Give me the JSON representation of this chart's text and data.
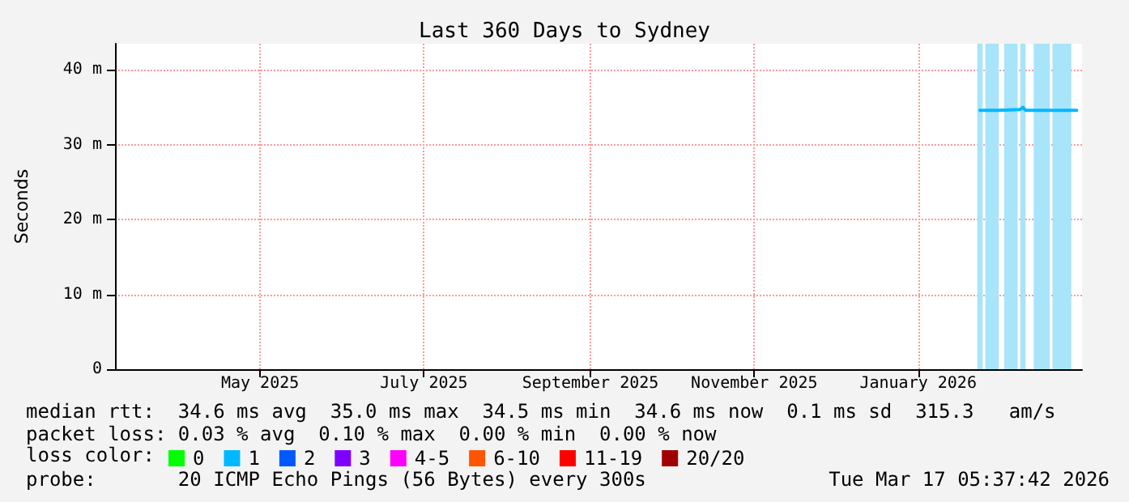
{
  "chart_data": {
    "type": "line",
    "title": "Last 360 Days to Sydney",
    "ylabel": "Seconds",
    "x": [
      "2026-02-07",
      "2026-02-14",
      "2026-02-22",
      "2026-02-23",
      "2026-02-24",
      "2026-03-05",
      "2026-03-15"
    ],
    "series": [
      {
        "color": "#00b8ff",
        "values": [
          34.6,
          34.6,
          34.7,
          35.0,
          34.6,
          34.6,
          34.6
        ]
      },
      {
        "name": "0",
        "color": "#00ff00",
        "values": [
          null,
          null,
          null,
          null,
          null,
          null,
          null
        ]
      },
      {
        "name": "1",
        "color": "#00b8ff",
        "values": [
          null,
          null,
          null,
          null,
          null,
          null,
          null
        ]
      },
      {
        "name": "2",
        "color": "#0059ff",
        "values": [
          null,
          null,
          null,
          null,
          null,
          null,
          null
        ]
      },
      {
        "name": "3",
        "color": "#7e00ff",
        "values": [
          null,
          null,
          null,
          null,
          null,
          null,
          null
        ]
      },
      {
        "name": "4-5",
        "color": "#ff00ff",
        "values": [
          null,
          null,
          null,
          null,
          null,
          null,
          null
        ]
      },
      {
        "name": "6-10",
        "color": "#ff5500",
        "values": [
          null,
          null,
          null,
          null,
          null,
          null,
          null
        ]
      },
      {
        "name": "11-19",
        "color": "#ff0000",
        "values": [
          null,
          null,
          null,
          null,
          null,
          null,
          null
        ]
      },
      {
        "name": "20/20",
        "color": "#a10000",
        "values": [
          null,
          null,
          null,
          null,
          null,
          null,
          null
        ]
      }
    ],
    "legend_title": "loss color:",
    "legend": "bottom",
    "xlim": [
      "2025-03-22",
      "2026-03-17"
    ],
    "xticks": [
      {
        "value": "2025-05-15",
        "label": "May 2025"
      },
      {
        "value": "2025-07-15",
        "label": "July 2025"
      },
      {
        "value": "2025-09-15",
        "label": "September 2025"
      },
      {
        "value": "2025-11-15",
        "label": "November 2025"
      },
      {
        "value": "2026-01-15",
        "label": "January 2026"
      }
    ],
    "ylim": [
      0,
      43.5
    ],
    "yticks": [
      0,
      {
        "value": 10,
        "label": "10 m"
      },
      {
        "value": 20,
        "label": "20 m"
      },
      {
        "value": 30,
        "label": "30 m"
      },
      {
        "value": 40,
        "label": "40 m"
      }
    ],
    "bands": [
      {
        "axis": "x",
        "from": "2026-02-06",
        "to": "2026-02-08",
        "color": "#a8e4fa"
      },
      {
        "axis": "x",
        "from": "2026-02-09",
        "to": "2026-02-14",
        "color": "#a8e4fa"
      },
      {
        "axis": "x",
        "from": "2026-02-16",
        "to": "2026-02-21",
        "color": "#a8e4fa"
      },
      {
        "axis": "x",
        "from": "2026-02-22",
        "to": "2026-02-24",
        "color": "#a8e4fa"
      },
      {
        "axis": "x",
        "from": "2026-02-27",
        "to": "2026-03-05",
        "color": "#a8e4fa"
      },
      {
        "axis": "x",
        "from": "2026-03-06",
        "to": "2026-03-13",
        "color": "#a8e4fa"
      }
    ],
    "grid": true,
    "marker": "none",
    "line_style": "solid",
    "annotations": [
      "median rtt:  34.6 ms avg  35.0 ms max  34.5 ms min  34.6 ms now  0.1 ms sd  315.3   am/s",
      "packet loss: 0.03 % avg  0.10 % max  0.00 % min  0.00 % now",
      "probe:       20 ICMP Echo Pings (56 Bytes) every 300s",
      "Tue Mar 17 05:37:42 2026"
    ]
  }
}
